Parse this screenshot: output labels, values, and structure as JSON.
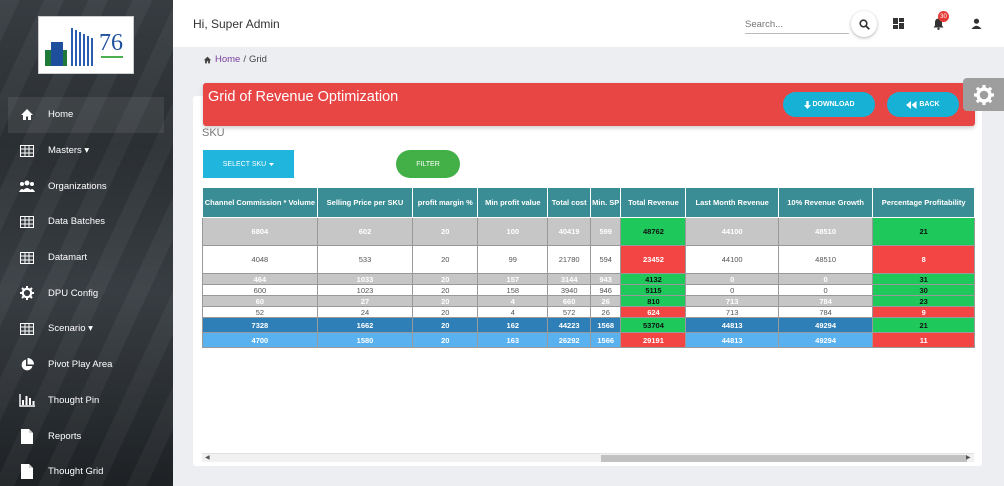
{
  "logo": {
    "text": "76",
    "alt": "76 logo"
  },
  "sidebar": {
    "items": [
      {
        "label": "Home",
        "icon": "home-icon"
      },
      {
        "label": "Masters ▾",
        "icon": "table-icon"
      },
      {
        "label": "Organizations",
        "icon": "users-icon"
      },
      {
        "label": "Data Batches",
        "icon": "table-icon"
      },
      {
        "label": "Datamart",
        "icon": "table-icon"
      },
      {
        "label": "DPU Config",
        "icon": "gear-icon"
      },
      {
        "label": "Scenario ▾",
        "icon": "table-icon"
      },
      {
        "label": "Pivot Play Area",
        "icon": "pie-chart-icon"
      },
      {
        "label": "Thought Pin",
        "icon": "bar-chart-icon"
      },
      {
        "label": "Reports",
        "icon": "file-icon"
      },
      {
        "label": "Thought Grid",
        "icon": "file-icon"
      }
    ]
  },
  "topbar": {
    "greeting": "Hi, Super Admin",
    "search_placeholder": "Search...",
    "notification_count": "30"
  },
  "breadcrumb": {
    "home": "Home",
    "separator": "/",
    "current": "Grid"
  },
  "panel": {
    "title": "Grid of Revenue Optimization",
    "download_label": "DOWNLOAD",
    "back_label": "BACK",
    "sku_label": "SKU",
    "select_sku_label": "SELECT SKU",
    "filter_label": "FILTER"
  },
  "table": {
    "headers": [
      "Channel Commission * Volume",
      "Selling Price per SKU",
      "profit margin %",
      "Min profit value",
      "Total cost",
      "Min. SP",
      "Total Revenue",
      "Last Month Revenue",
      "10% Revenue Growth",
      "Percentage Profitability"
    ],
    "rows": [
      [
        "6804",
        "602",
        "20",
        "100",
        "40419",
        "599",
        "48762",
        "44100",
        "48510",
        "21"
      ],
      [
        "4048",
        "533",
        "20",
        "99",
        "21780",
        "594",
        "23452",
        "44100",
        "48510",
        "8"
      ],
      [
        "464",
        "1033",
        "20",
        "157",
        "3144",
        "943",
        "4132",
        "0",
        "0",
        "31"
      ],
      [
        "600",
        "1023",
        "20",
        "158",
        "3940",
        "946",
        "5115",
        "0",
        "0",
        "30"
      ],
      [
        "60",
        "27",
        "20",
        "4",
        "660",
        "26",
        "810",
        "713",
        "784",
        "23"
      ],
      [
        "52",
        "24",
        "20",
        "4",
        "572",
        "26",
        "624",
        "713",
        "784",
        "9"
      ],
      [
        "7328",
        "1662",
        "20",
        "162",
        "44223",
        "1568",
        "53704",
        "44813",
        "49294",
        "21"
      ],
      [
        "4700",
        "1580",
        "20",
        "163",
        "26292",
        "1566",
        "29191",
        "44813",
        "49294",
        "11"
      ]
    ],
    "row_styles": [
      "gray",
      "white",
      "gray",
      "white",
      "gray",
      "white",
      "dblue",
      "lblue"
    ],
    "status": [
      "green",
      "red",
      "green",
      "green",
      "green",
      "red",
      "green",
      "red"
    ]
  },
  "colors": {
    "header_red": "#e84545",
    "accent_cyan": "#17b1d6",
    "table_header": "#3a8d94",
    "positive": "#1ec85a",
    "negative": "#f44545",
    "filter_green": "#43b047"
  }
}
